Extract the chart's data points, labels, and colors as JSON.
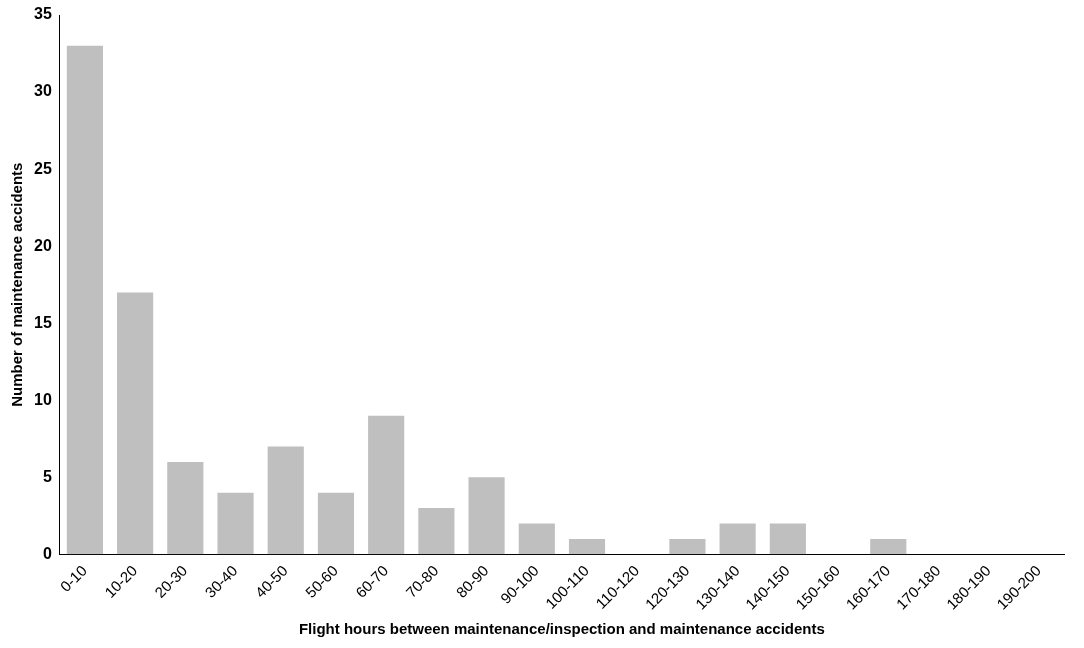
{
  "chart_data": {
    "type": "bar",
    "categories": [
      "0-10",
      "10-20",
      "20-30",
      "30-40",
      "40-50",
      "50-60",
      "60-70",
      "70-80",
      "80-90",
      "90-100",
      "100-110",
      "110-120",
      "120-130",
      "130-140",
      "140-150",
      "150-160",
      "160-170",
      "170-180",
      "180-190",
      "190-200"
    ],
    "values": [
      33,
      17,
      6,
      4,
      7,
      4,
      9,
      3,
      5,
      2,
      1,
      0,
      1,
      2,
      2,
      0,
      1,
      0,
      0,
      0
    ],
    "color": "#bfbfbf",
    "xlabel": "Flight hours between maintenance/inspection and maintenance accidents",
    "ylabel": "Number of maintenance accidents",
    "ylim": [
      0,
      35
    ],
    "yticks": [
      0,
      5,
      10,
      15,
      20,
      25,
      30,
      35
    ],
    "grid": false,
    "legend": false
  }
}
